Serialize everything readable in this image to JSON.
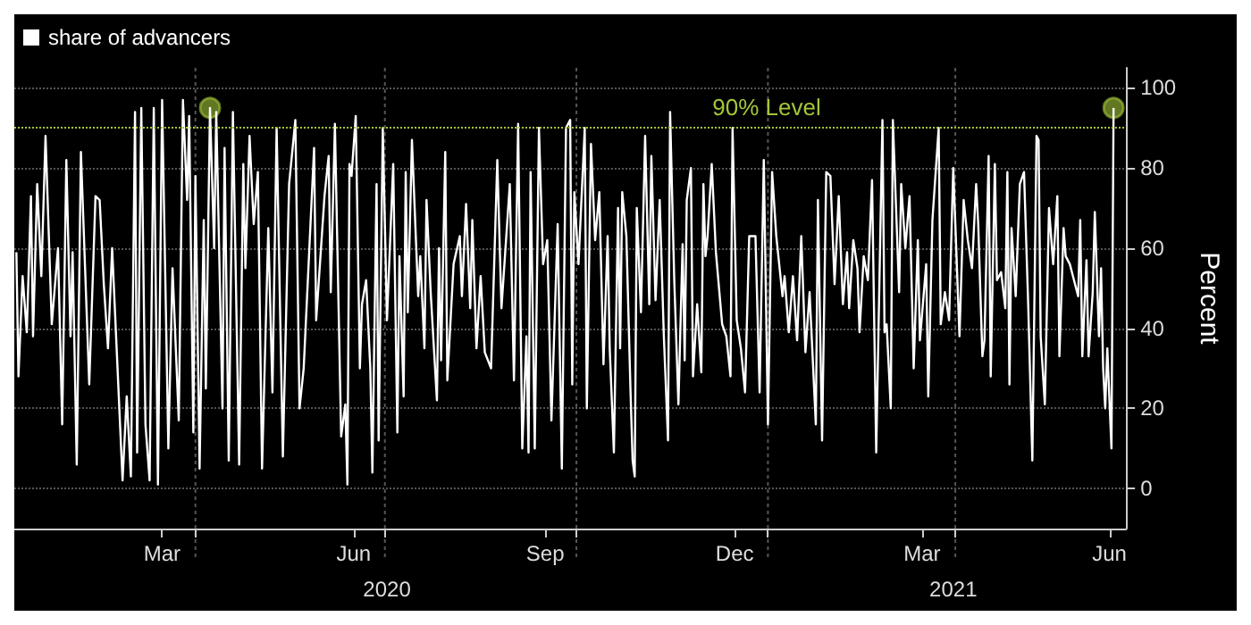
{
  "chart_data": {
    "type": "line",
    "legend": "top left",
    "grid": true,
    "marker": "none",
    "line_style": "solid",
    "ylabel": "Percent",
    "xlim": [
      "2020-01-05",
      "2021-06-22"
    ],
    "xticks": [
      {
        "value": "2020-03-16",
        "label": "Mar"
      },
      {
        "value": "2020-04-01",
        "label": null
      },
      {
        "value": "2020-06-16",
        "label": "Jun"
      },
      {
        "value": "2020-07-01",
        "label": null
      },
      {
        "value": "2020-09-16",
        "label": "Sep"
      },
      {
        "value": "2020-10-01",
        "label": null
      },
      {
        "value": "2020-12-16",
        "label": "Dec"
      },
      {
        "value": "2021-01-01",
        "label": null
      },
      {
        "value": "2021-03-16",
        "label": "Mar"
      },
      {
        "value": "2021-04-01",
        "label": null
      },
      {
        "value": "2021-06-14",
        "label": "Jun"
      }
    ],
    "x2lim": [
      "2020-01-05",
      "2021-06-22"
    ],
    "x2ticks": [
      {
        "value": "2020-07-02",
        "label": "2020"
      },
      {
        "value": "2021-03-31",
        "label": "2021"
      }
    ],
    "ylim": [
      -10,
      105
    ],
    "yticks": [
      0,
      20,
      40,
      60,
      80,
      100
    ],
    "ref_lines": [
      {
        "axis": "y",
        "value": 90,
        "label": "90% Level",
        "color": "#a4c639",
        "line_style": "dotted"
      }
    ],
    "series": [
      {
        "name": "share of advancers",
        "color": "#ffffff",
        "x": [
          "2020-01-06",
          "2020-01-07",
          "2020-01-09",
          "2020-01-11",
          "2020-01-13",
          "2020-01-14",
          "2020-01-16",
          "2020-01-18",
          "2020-01-20",
          "2020-01-23",
          "2020-01-26",
          "2020-01-28",
          "2020-01-30",
          "2020-02-01",
          "2020-02-02",
          "2020-02-04",
          "2020-02-06",
          "2020-02-10",
          "2020-02-13",
          "2020-02-15",
          "2020-02-17",
          "2020-02-19",
          "2020-02-21",
          "2020-02-26",
          "2020-02-28",
          "2020-03-01",
          "2020-03-03",
          "2020-03-04",
          "2020-03-06",
          "2020-03-08",
          "2020-03-10",
          "2020-03-12",
          "2020-03-14",
          "2020-03-16",
          "2020-03-19",
          "2020-03-21",
          "2020-03-24",
          "2020-03-26",
          "2020-03-28",
          "2020-03-29",
          "2020-03-31",
          "2020-04-01",
          "2020-04-03",
          "2020-04-05",
          "2020-04-06",
          "2020-04-08",
          "2020-04-10",
          "2020-04-11",
          "2020-04-14",
          "2020-04-15",
          "2020-04-17",
          "2020-04-19",
          "2020-04-22",
          "2020-04-24",
          "2020-04-25",
          "2020-04-27",
          "2020-04-29",
          "2020-05-01",
          "2020-05-03",
          "2020-05-06",
          "2020-05-08",
          "2020-05-10",
          "2020-05-13",
          "2020-05-16",
          "2020-05-19",
          "2020-05-21",
          "2020-05-23",
          "2020-05-28",
          "2020-05-29",
          "2020-06-02",
          "2020-06-04",
          "2020-06-05",
          "2020-06-07",
          "2020-06-10",
          "2020-06-12",
          "2020-06-13",
          "2020-06-14",
          "2020-06-15",
          "2020-06-17",
          "2020-06-19",
          "2020-06-20",
          "2020-06-22",
          "2020-06-24",
          "2020-06-25",
          "2020-06-27",
          "2020-06-28",
          "2020-06-30",
          "2020-07-02",
          "2020-07-05",
          "2020-07-07",
          "2020-07-08",
          "2020-07-10",
          "2020-07-11",
          "2020-07-12",
          "2020-07-14",
          "2020-07-17",
          "2020-07-18",
          "2020-07-20",
          "2020-07-21",
          "2020-07-23",
          "2020-07-26",
          "2020-07-27",
          "2020-07-28",
          "2020-07-30",
          "2020-07-31",
          "2020-08-03",
          "2020-08-06",
          "2020-08-07",
          "2020-08-09",
          "2020-08-11",
          "2020-08-12",
          "2020-08-14",
          "2020-08-16",
          "2020-08-18",
          "2020-08-21",
          "2020-08-24",
          "2020-08-26",
          "2020-08-30",
          "2020-09-01",
          "2020-09-03",
          "2020-09-05",
          "2020-09-07",
          "2020-09-08",
          "2020-09-09",
          "2020-09-11",
          "2020-09-13",
          "2020-09-15",
          "2020-09-17",
          "2020-09-19",
          "2020-09-22",
          "2020-09-24",
          "2020-09-26",
          "2020-09-28",
          "2020-09-29",
          "2020-09-30",
          "2020-10-02",
          "2020-10-05",
          "2020-10-06",
          "2020-10-08",
          "2020-10-10",
          "2020-10-12",
          "2020-10-14",
          "2020-10-16",
          "2020-10-17",
          "2020-10-19",
          "2020-10-21",
          "2020-10-22",
          "2020-10-23",
          "2020-10-25",
          "2020-10-27",
          "2020-10-28",
          "2020-10-29",
          "2020-10-30",
          "2020-11-01",
          "2020-11-03",
          "2020-11-05",
          "2020-11-06",
          "2020-11-08",
          "2020-11-10",
          "2020-11-12",
          "2020-11-14",
          "2020-11-15",
          "2020-11-17",
          "2020-11-19",
          "2020-11-21",
          "2020-11-22",
          "2020-11-23",
          "2020-11-25",
          "2020-11-26",
          "2020-11-28",
          "2020-11-30",
          "2020-12-01",
          "2020-12-02",
          "2020-12-03",
          "2020-12-05",
          "2020-12-07",
          "2020-12-10",
          "2020-12-12",
          "2020-12-14",
          "2020-12-15",
          "2020-12-17",
          "2020-12-19",
          "2020-12-21",
          "2020-12-23",
          "2020-12-26",
          "2020-12-28",
          "2020-12-30",
          "2021-01-01",
          "2021-01-03",
          "2021-01-05",
          "2021-01-08",
          "2021-01-09",
          "2021-01-11",
          "2021-01-13",
          "2021-01-15",
          "2021-01-17",
          "2021-01-19",
          "2021-01-21",
          "2021-01-24",
          "2021-01-25",
          "2021-01-27",
          "2021-01-29",
          "2021-01-31",
          "2021-02-02",
          "2021-02-04",
          "2021-02-06",
          "2021-02-08",
          "2021-02-09",
          "2021-02-11",
          "2021-02-13",
          "2021-02-14",
          "2021-02-16",
          "2021-02-18",
          "2021-02-20",
          "2021-02-22",
          "2021-02-25",
          "2021-02-26",
          "2021-02-27",
          "2021-03-01",
          "2021-03-02",
          "2021-03-05",
          "2021-03-06",
          "2021-03-08",
          "2021-03-10",
          "2021-03-12",
          "2021-03-14",
          "2021-03-15",
          "2021-03-18",
          "2021-03-19",
          "2021-03-21",
          "2021-03-24",
          "2021-03-25",
          "2021-03-27",
          "2021-03-29",
          "2021-03-31",
          "2021-04-03",
          "2021-04-05",
          "2021-04-07",
          "2021-04-09",
          "2021-04-11",
          "2021-04-12",
          "2021-04-14",
          "2021-04-15",
          "2021-04-17",
          "2021-04-18",
          "2021-04-20",
          "2021-04-21",
          "2021-04-23",
          "2021-04-25",
          "2021-04-26",
          "2021-04-27",
          "2021-04-28",
          "2021-04-30",
          "2021-05-02",
          "2021-05-04",
          "2021-05-06",
          "2021-05-08",
          "2021-05-10",
          "2021-05-11",
          "2021-05-12",
          "2021-05-14",
          "2021-05-16",
          "2021-05-18",
          "2021-05-20",
          "2021-05-21",
          "2021-05-23",
          "2021-05-24",
          "2021-05-26",
          "2021-05-28",
          "2021-05-30",
          "2021-05-31",
          "2021-06-01",
          "2021-06-03",
          "2021-06-04",
          "2021-06-06",
          "2021-06-07",
          "2021-06-09",
          "2021-06-10",
          "2021-06-11",
          "2021-06-12",
          "2021-06-13",
          "2021-06-15",
          "2021-06-16"
        ],
        "values": [
          59,
          28,
          53,
          39,
          73,
          38,
          76,
          53,
          88,
          41,
          60,
          16,
          82,
          38,
          59,
          6,
          84,
          26,
          73,
          72,
          51,
          35,
          60,
          2,
          23,
          3,
          94,
          9,
          95,
          16,
          2,
          95,
          1,
          97,
          10,
          55,
          17,
          97,
          72,
          93,
          14,
          78,
          5,
          67,
          25,
          95,
          60,
          94,
          20,
          85,
          7,
          94,
          6,
          81,
          55,
          88,
          66,
          79,
          5,
          65,
          24,
          90,
          8,
          76,
          92,
          20,
          30,
          85,
          42,
          73,
          83,
          49,
          91,
          13,
          21,
          1,
          81,
          78,
          93,
          30,
          46,
          52,
          30,
          4,
          76,
          12,
          90,
          42,
          81,
          14,
          58,
          23,
          79,
          44,
          87,
          48,
          58,
          35,
          72,
          49,
          22,
          60,
          32,
          84,
          27,
          56,
          63,
          48,
          71,
          45,
          67,
          35,
          53,
          34,
          30,
          82,
          45,
          76,
          27,
          91,
          10,
          38,
          9,
          79,
          10,
          90,
          56,
          62,
          17,
          66,
          5,
          90,
          92,
          26,
          74,
          56,
          90,
          20,
          86,
          62,
          74,
          31,
          63,
          35,
          9,
          70,
          35,
          74,
          63,
          24,
          7,
          3,
          70,
          44,
          88,
          46,
          83,
          47,
          72,
          38,
          12,
          94,
          52,
          21,
          61,
          32,
          72,
          80,
          28,
          46,
          29,
          76,
          58,
          63,
          81,
          59,
          41,
          38,
          28,
          90,
          42,
          35,
          24,
          63,
          63,
          24,
          82,
          16,
          79,
          63,
          48,
          53,
          39,
          53,
          37,
          63,
          34,
          49,
          16,
          72,
          12,
          79,
          78,
          51,
          73,
          46,
          59,
          45,
          62,
          55,
          39,
          58,
          52,
          77,
          9,
          92,
          39,
          41,
          20,
          92,
          49,
          76,
          60,
          73,
          30,
          62,
          37,
          56,
          23,
          67,
          90,
          41,
          49,
          42,
          80,
          38,
          72,
          62,
          55,
          76,
          66,
          33,
          37,
          83,
          28,
          81,
          52,
          54,
          45,
          79,
          26,
          65,
          48,
          76,
          79,
          46,
          7,
          88,
          87,
          38,
          21,
          70,
          56,
          73,
          33,
          65,
          58,
          56,
          52,
          48,
          67,
          33,
          57,
          33,
          49,
          69,
          38,
          55,
          30,
          20,
          35,
          10,
          95
        ]
      },
      {
        "type": "scatter",
        "color": "#a4c639",
        "marker": "circle",
        "x": [
          "2020-04-08",
          "2021-06-16"
        ],
        "values": [
          95,
          95
        ]
      }
    ]
  }
}
